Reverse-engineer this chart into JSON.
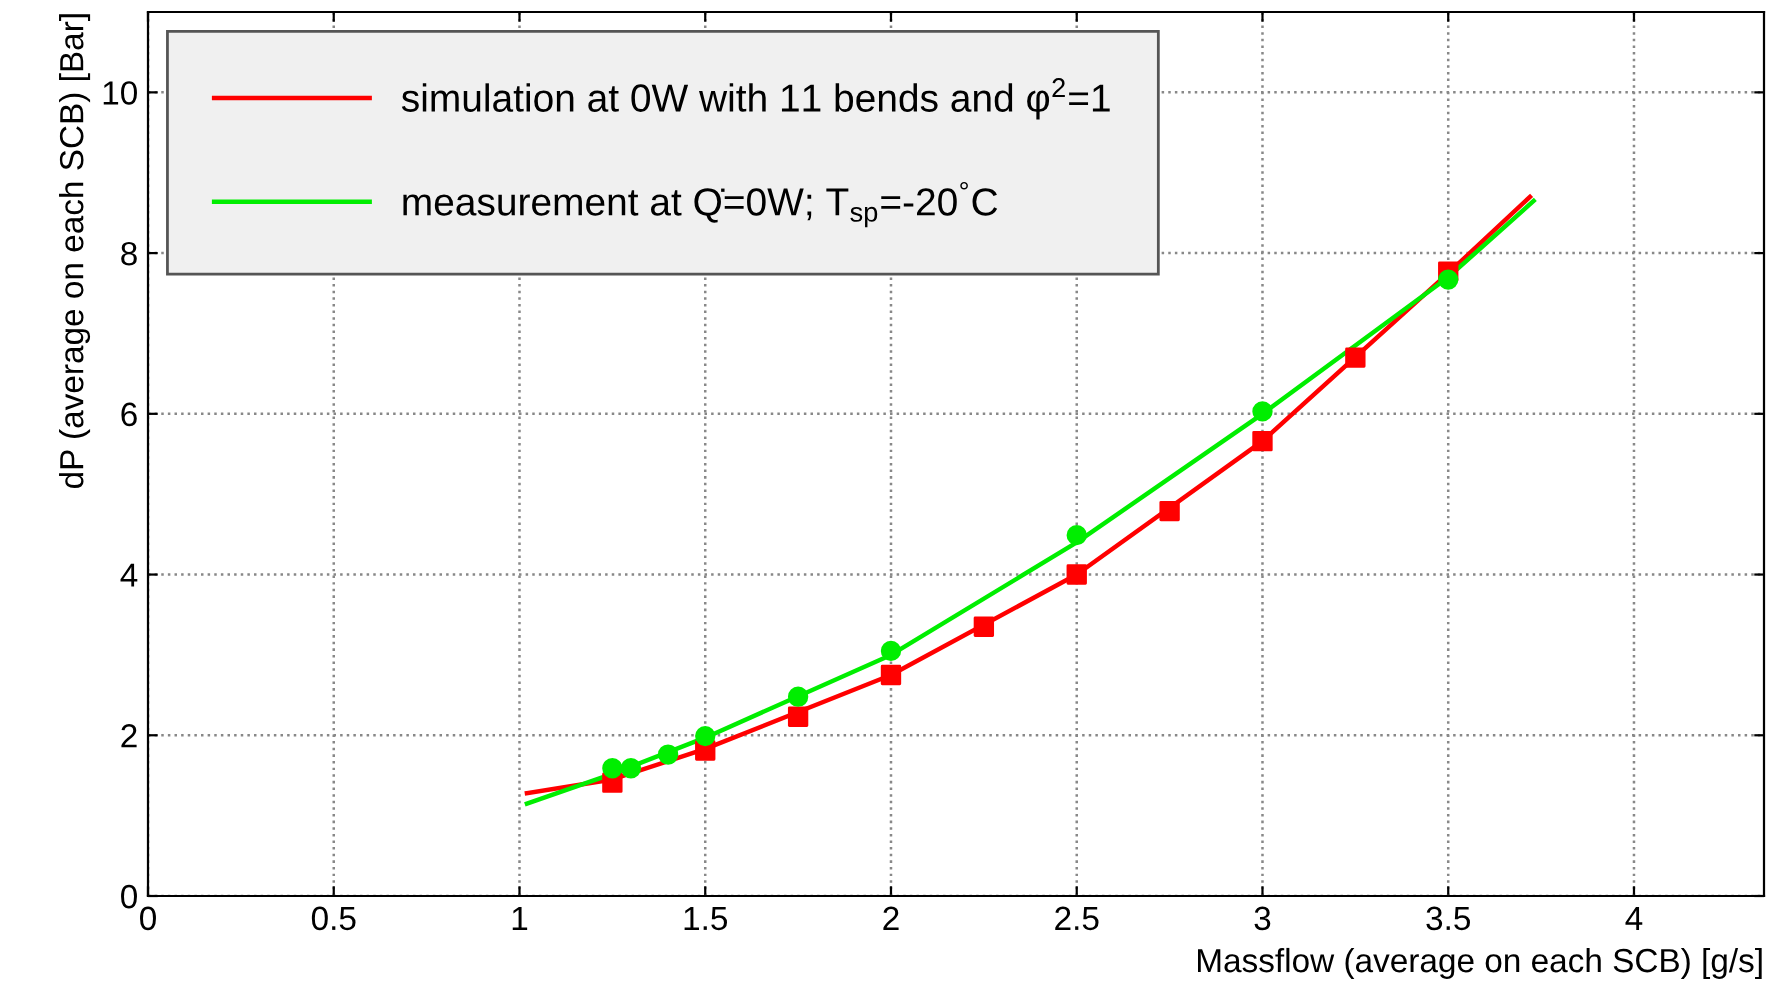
{
  "chart_data": {
    "type": "line",
    "xlabel": "Massflow (average on each SCB) [g/s]",
    "ylabel": "dP (average on each SCB) [Bar]",
    "xlim": [
      0,
      4.35
    ],
    "ylim": [
      0,
      11
    ],
    "xticks": [
      0,
      0.5,
      1,
      1.5,
      2,
      2.5,
      3,
      3.5,
      4
    ],
    "yticks": [
      0,
      2,
      4,
      6,
      8,
      10
    ],
    "grid": true,
    "legend": "top left",
    "line_style": "solid",
    "series": [
      {
        "name": "simulation at 0W with 11 bends and φ$^{2}$=1",
        "color": "#ff0000",
        "marker": "none",
        "x": [
          1.02,
          1.25,
          1.5,
          2.0,
          2.5,
          3.0,
          3.5,
          3.72
        ],
        "values": [
          1.28,
          1.45,
          1.83,
          2.75,
          4.0,
          5.66,
          7.75,
          8.7
        ]
      },
      {
        "color": "#ff0000",
        "type": "scatter",
        "marker": "square",
        "x": [
          1.25,
          1.5,
          1.75,
          2.0,
          2.25,
          2.5,
          2.75,
          3.0,
          3.25,
          3.5
        ],
        "values": [
          1.41,
          1.81,
          2.23,
          2.75,
          3.35,
          4.0,
          4.79,
          5.66,
          6.7,
          7.77
        ]
      },
      {
        "name": "measurement at Q̇=0W; T$_{sp}$=-20$^{°}$C",
        "color": "#00ee00",
        "marker": "none",
        "x": [
          1.02,
          1.25,
          1.5,
          2.0,
          2.5,
          3.0,
          3.5,
          3.73
        ],
        "values": [
          1.15,
          1.52,
          1.97,
          3.0,
          4.4,
          6.0,
          7.7,
          8.65
        ]
      },
      {
        "color": "#00ee00",
        "type": "scatter",
        "marker": "circle",
        "x": [
          1.25,
          1.3,
          1.4,
          1.5,
          1.75,
          2.0,
          2.5,
          3.0,
          3.5
        ],
        "values": [
          1.59,
          1.59,
          1.76,
          1.99,
          2.48,
          3.05,
          4.49,
          6.03,
          7.67
        ]
      }
    ]
  }
}
